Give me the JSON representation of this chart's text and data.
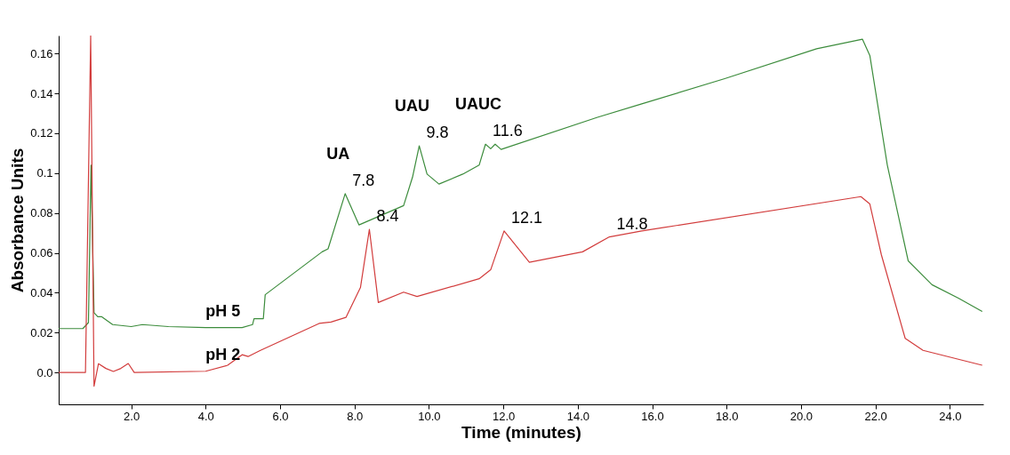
{
  "chart_data": {
    "type": "line",
    "xlabel": "Time (minutes)",
    "ylabel": "Absorbance Units",
    "xlim": [
      0.05,
      24.9
    ],
    "ylim": [
      -0.016,
      0.169
    ],
    "xticks": [
      {
        "value": 2,
        "label": "2.0"
      },
      {
        "value": 4,
        "label": "4.0"
      },
      {
        "value": 6,
        "label": "6.0"
      },
      {
        "value": 8,
        "label": "8.0"
      },
      {
        "value": 10,
        "label": "10.0"
      },
      {
        "value": 12,
        "label": "12.0"
      },
      {
        "value": 14,
        "label": "14.0"
      },
      {
        "value": 16,
        "label": "16.0"
      },
      {
        "value": 18,
        "label": "18.0"
      },
      {
        "value": 20,
        "label": "20.0"
      },
      {
        "value": 22,
        "label": "22.0"
      },
      {
        "value": 24,
        "label": "24.0"
      }
    ],
    "yticks": [
      {
        "value": 0,
        "label": "0.0"
      },
      0.02,
      0.04,
      0.06,
      0.08,
      0.1,
      0.12,
      0.14,
      0.16
    ],
    "grid": false,
    "legend": false,
    "marker": "none",
    "line_style": "solid",
    "series": [
      {
        "name": "pH 5",
        "color": "#3c8c3c",
        "x": [
          0.05,
          0.7,
          0.85,
          0.92,
          1.0,
          1.1,
          1.2,
          1.5,
          2.0,
          2.3,
          3.0,
          4.0,
          4.98,
          5.26,
          5.3,
          5.55,
          5.6,
          7.13,
          7.29,
          7.75,
          8.12,
          9.32,
          9.56,
          9.74,
          9.95,
          10.27,
          10.91,
          11.35,
          11.52,
          11.66,
          11.78,
          11.94,
          14.53,
          15.72,
          17.95,
          20.42,
          21.65,
          21.85,
          22.32,
          22.88,
          23.52,
          24.23,
          24.87
        ],
        "values": [
          0.022,
          0.022,
          0.025,
          0.104,
          0.03,
          0.028,
          0.028,
          0.024,
          0.023,
          0.024,
          0.023,
          0.0225,
          0.0225,
          0.024,
          0.027,
          0.027,
          0.039,
          0.0605,
          0.062,
          0.0897,
          0.074,
          0.0837,
          0.098,
          0.1137,
          0.0995,
          0.0945,
          0.0995,
          0.104,
          0.1145,
          0.1122,
          0.1145,
          0.1119,
          0.128,
          0.1347,
          0.1474,
          0.1624,
          0.1672,
          0.159,
          0.104,
          0.056,
          0.044,
          0.0373,
          0.0306
        ]
      },
      {
        "name": "pH 2",
        "color": "#d23c3c",
        "x": [
          0.05,
          0.77,
          0.91,
          1.0,
          1.12,
          1.32,
          1.52,
          1.72,
          1.92,
          2.08,
          4.0,
          4.59,
          4.98,
          5.14,
          5.46,
          7.05,
          7.37,
          7.77,
          8.16,
          8.4,
          8.64,
          9.32,
          9.68,
          11.35,
          11.66,
          12.02,
          12.7,
          14.13,
          14.85,
          15.72,
          21.61,
          21.85,
          22.16,
          22.8,
          23.28,
          24.87
        ],
        "values": [
          0.0,
          0.0,
          0.169,
          -0.0069,
          0.0044,
          0.002,
          0.0005,
          0.002,
          0.0045,
          0.0,
          0.0006,
          0.0036,
          0.0089,
          0.008,
          0.011,
          0.0246,
          0.0253,
          0.0276,
          0.0426,
          0.0718,
          0.0351,
          0.0403,
          0.0381,
          0.047,
          0.0515,
          0.071,
          0.0553,
          0.0605,
          0.068,
          0.071,
          0.0882,
          0.0845,
          0.059,
          0.0171,
          0.0111,
          0.0036
        ]
      }
    ],
    "annotations": [
      {
        "text": "UA",
        "x": 7.75,
        "y": 0.0897
      },
      {
        "text": "7.8",
        "x": 7.75,
        "y": 0.0897
      },
      {
        "text": "UAU",
        "x": 9.74,
        "y": 0.1137
      },
      {
        "text": "9.8",
        "x": 9.74,
        "y": 0.1137
      },
      {
        "text": "UAUC",
        "x": 11.52,
        "y": 0.1145
      },
      {
        "text": "11.6",
        "x": 11.52,
        "y": 0.1145
      },
      {
        "text": "8.4",
        "x": 8.4,
        "y": 0.0718
      },
      {
        "text": "12.1",
        "x": 12.02,
        "y": 0.071
      },
      {
        "text": "14.8",
        "x": 14.85,
        "y": 0.068
      }
    ]
  }
}
